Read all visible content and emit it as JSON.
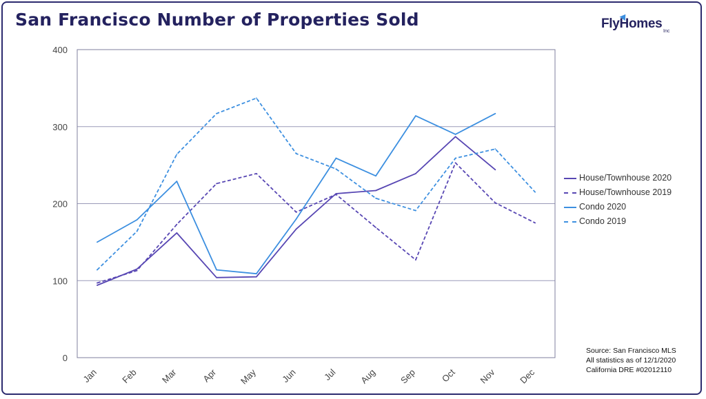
{
  "title": "San Francisco Number of Properties Sold",
  "brand": {
    "name": "FlyHomes",
    "suffix": "Inc"
  },
  "source_lines": [
    "Source: San Francisco MLS",
    "All statistics as of 12/1/2020",
    "California DRE #02012110"
  ],
  "chart_data": {
    "type": "line",
    "categories": [
      "Jan",
      "Feb",
      "Mar",
      "Apr",
      "May",
      "Jun",
      "Jul",
      "Aug",
      "Sep",
      "Oct",
      "Nov",
      "Dec"
    ],
    "ylim": [
      0,
      400
    ],
    "yticks": [
      0,
      100,
      200,
      300,
      400
    ],
    "grid": true,
    "legend_position": "right",
    "series": [
      {
        "name": "House/Townhouse 2020",
        "color": "#5746b3",
        "dashed": false,
        "values": [
          94,
          115,
          162,
          104,
          105,
          167,
          213,
          217,
          239,
          287,
          244,
          null
        ]
      },
      {
        "name": "House/Townhouse 2019",
        "color": "#5746b3",
        "dashed": true,
        "values": [
          97,
          113,
          173,
          226,
          239,
          189,
          212,
          169,
          127,
          253,
          201,
          175
        ]
      },
      {
        "name": "Condo 2020",
        "color": "#3c8fe0",
        "dashed": false,
        "values": [
          150,
          179,
          229,
          114,
          109,
          180,
          259,
          236,
          314,
          290,
          317,
          null
        ]
      },
      {
        "name": "Condo 2019",
        "color": "#3c8fe0",
        "dashed": true,
        "values": [
          114,
          164,
          264,
          317,
          337,
          265,
          245,
          207,
          191,
          259,
          271,
          215
        ]
      }
    ]
  }
}
